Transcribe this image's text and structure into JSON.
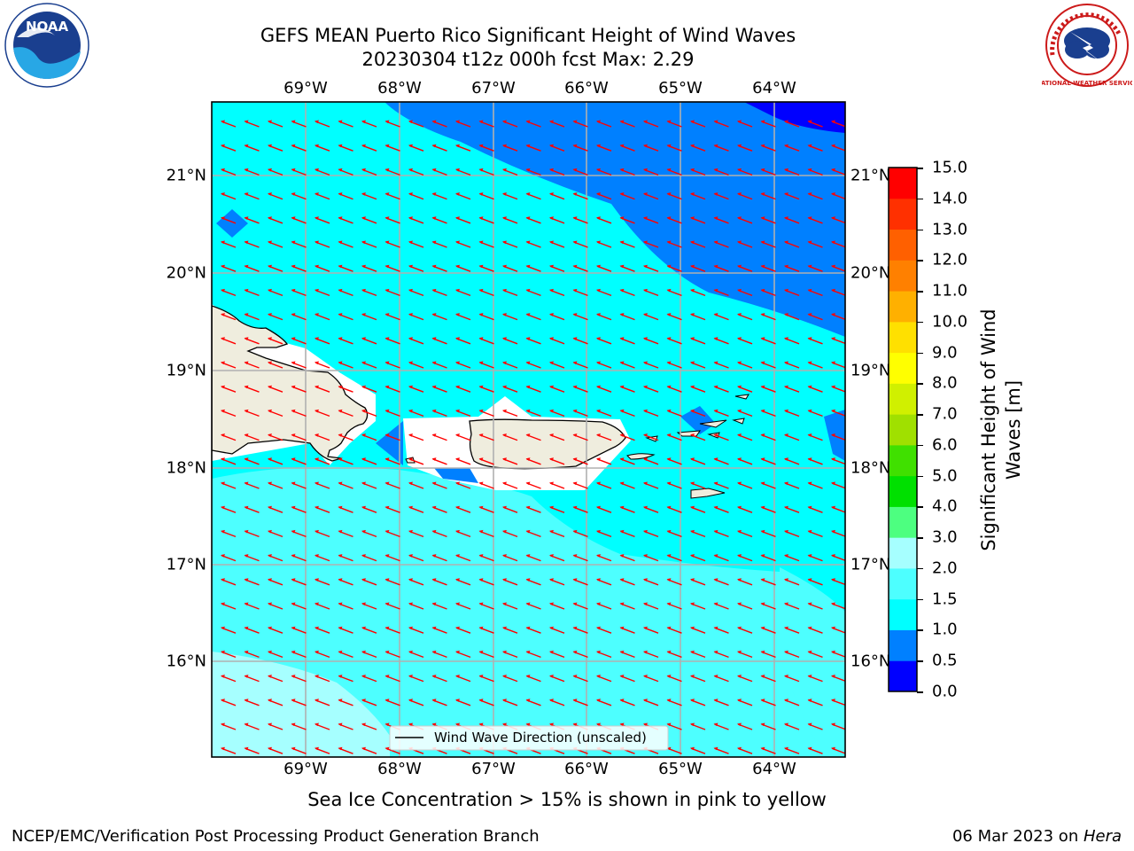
{
  "title": {
    "line1": "GEFS MEAN Puerto Rico Significant Height of Wind Waves",
    "line2": "20230304 t12z 000h fcst   Max: 2.29"
  },
  "logos": {
    "noaa_text": "NOAA",
    "nws_text": "NATIONAL WEATHER SERVICE"
  },
  "map": {
    "lon_labels": [
      "69°W",
      "68°W",
      "67°W",
      "66°W",
      "65°W",
      "64°W"
    ],
    "lat_labels": [
      "21°N",
      "20°N",
      "19°N",
      "18°N",
      "17°N",
      "16°N"
    ],
    "legend_label": "Wind Wave Direction (unscaled)",
    "land_color": "#efedde",
    "coast_color": "#000000",
    "arrow_color": "#ff0000",
    "grid_color": "#b0b0b0"
  },
  "colorbar": {
    "title": "Significant Height of Wind Waves [m]",
    "ticks": [
      "0.0",
      "0.5",
      "1.0",
      "1.5",
      "2.0",
      "3.0",
      "4.0",
      "5.0",
      "6.0",
      "7.0",
      "8.0",
      "9.0",
      "10.0",
      "11.0",
      "12.0",
      "13.0",
      "14.0",
      "15.0"
    ],
    "colors": [
      "#0000ff",
      "#0080ff",
      "#00ffff",
      "#4dffff",
      "#a6ffff",
      "#4dff80",
      "#00e000",
      "#40e000",
      "#a0e000",
      "#d0f000",
      "#ffff00",
      "#ffe000",
      "#ffb000",
      "#ff8000",
      "#ff6000",
      "#ff3000",
      "#ff0000"
    ]
  },
  "note": "Sea Ice Concentration > 15% is shown in pink to yellow",
  "footer": {
    "left": "NCEP/EMC/Verification Post Processing Product Generation Branch",
    "right_prefix": "06 Mar 2023 on ",
    "right_host": "Hera"
  }
}
